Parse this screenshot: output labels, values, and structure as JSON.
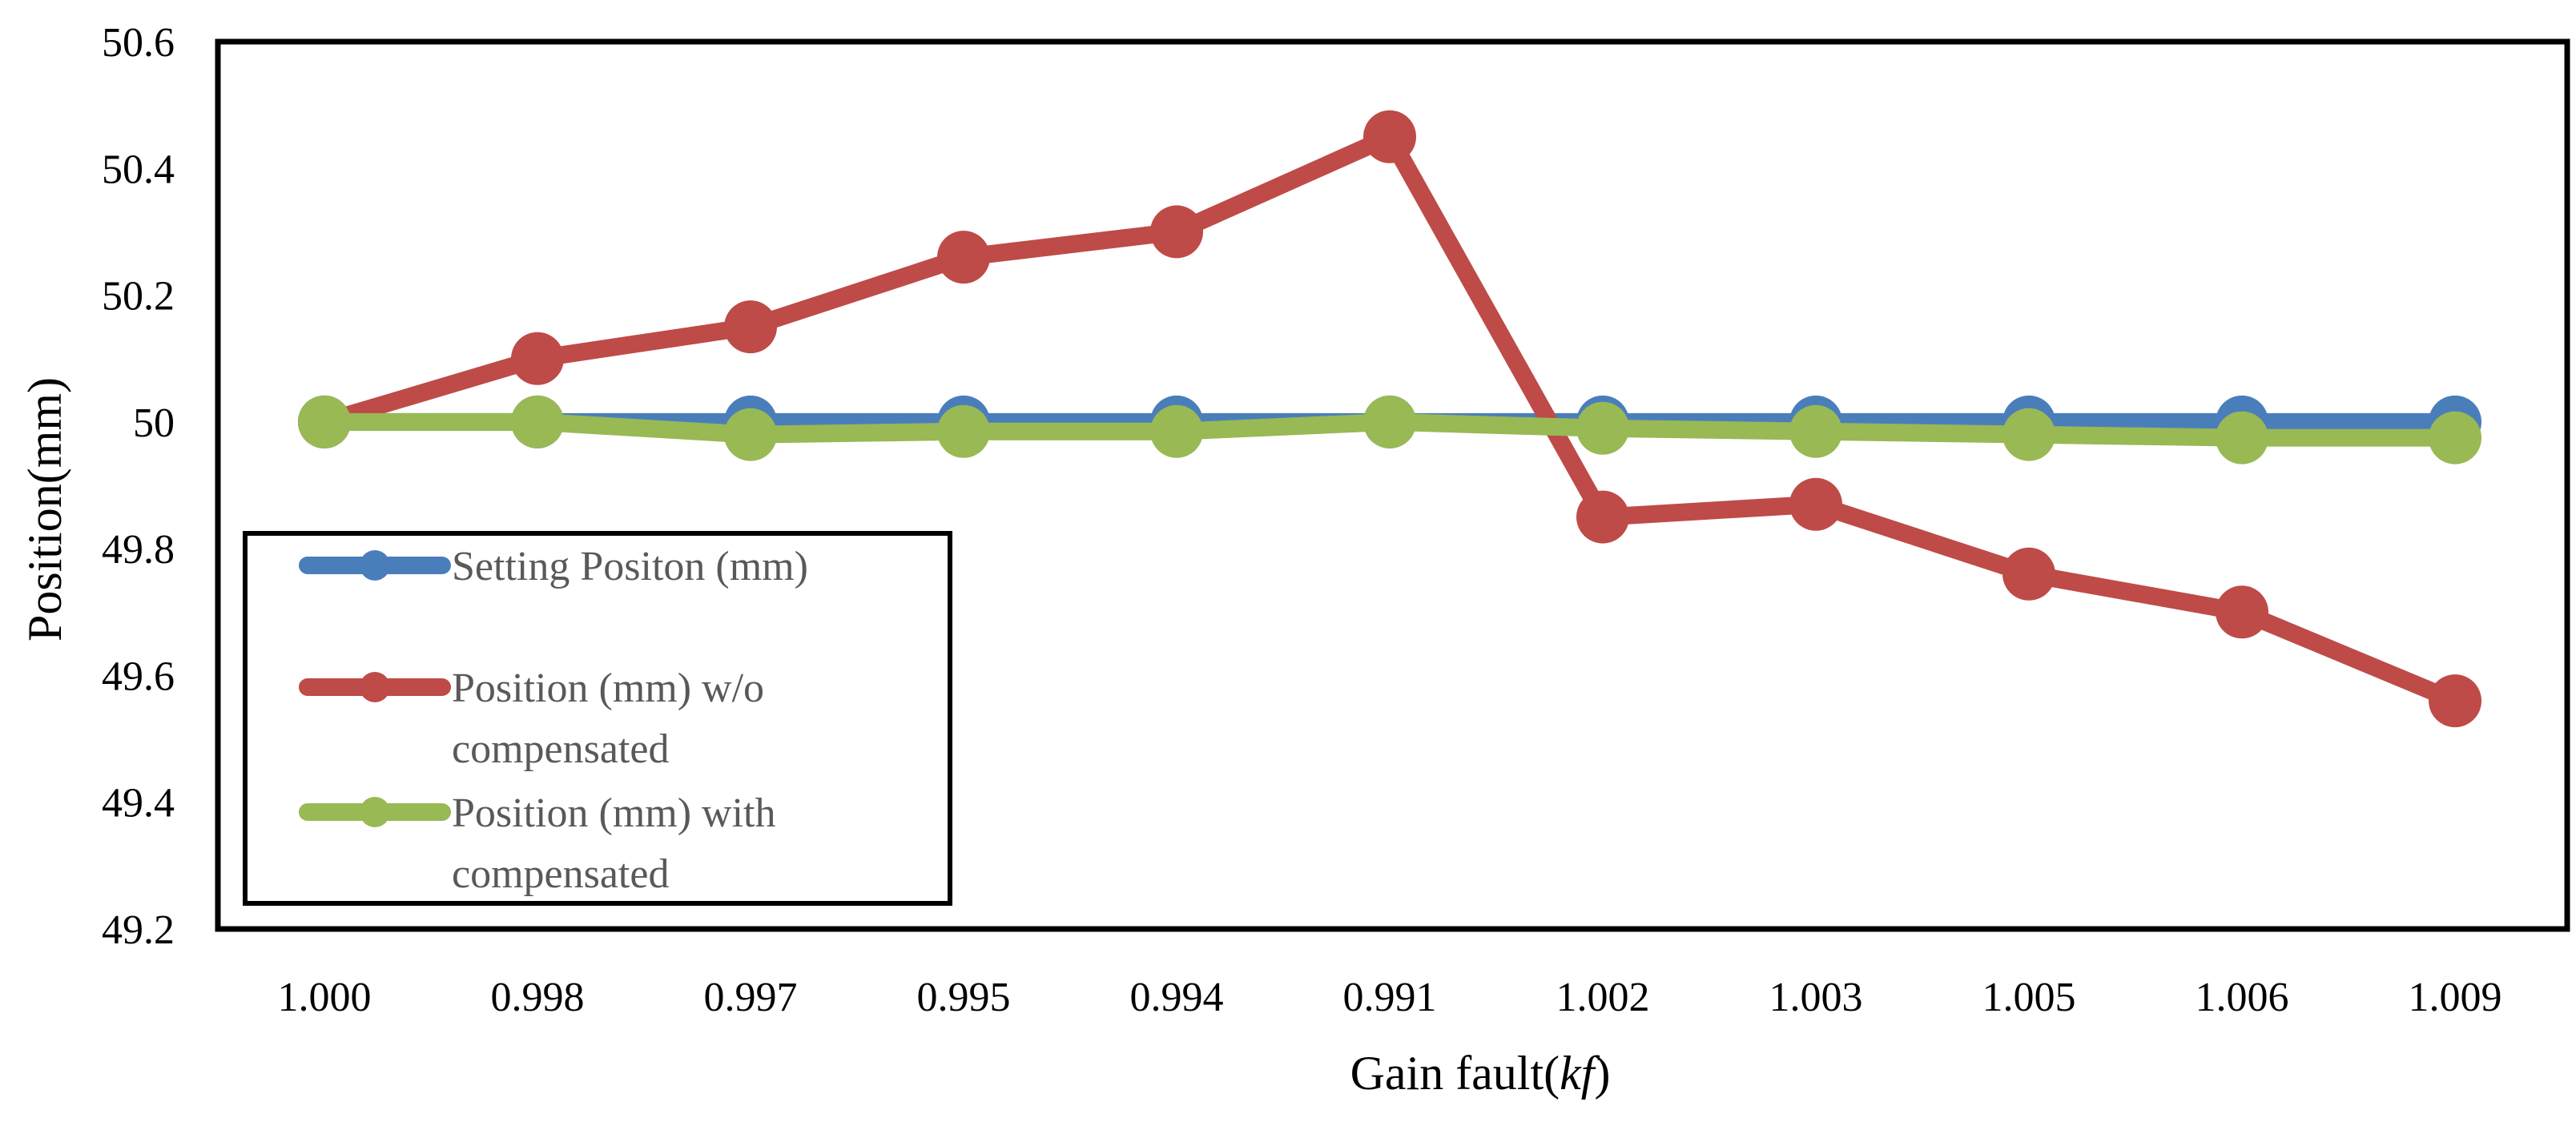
{
  "chart_data": {
    "type": "line",
    "title": "",
    "xlabel": "Gain fault(",
    "xlabel_italic": "kf",
    "xlabel_suffix": ")",
    "ylabel": "Position(mm)",
    "ylim": [
      49.2,
      50.6
    ],
    "yticks": [
      "49.2",
      "49.4",
      "49.6",
      "49.8",
      "50",
      "50.2",
      "50.4",
      "50.6"
    ],
    "ytick_values": [
      49.2,
      49.4,
      49.6,
      49.8,
      50.0,
      50.2,
      50.4,
      50.6
    ],
    "categories": [
      "1.000",
      "0.998",
      "0.997",
      "0.995",
      "0.994",
      "0.991",
      "1.002",
      "1.003",
      "1.005",
      "1.006",
      "1.009"
    ],
    "grid": false,
    "legend_position": "lower-left",
    "series": [
      {
        "name": "Setting Positon (mm)",
        "color": "#4A7EBB",
        "values": [
          50,
          50,
          50,
          50,
          50,
          50,
          50,
          50,
          50,
          50,
          50
        ]
      },
      {
        "name": "Position (mm) w/o compensated",
        "legend_lines": [
          "Position (mm) w/o",
          "compensated"
        ],
        "color": "#BE4B48",
        "values": [
          50.0,
          50.1,
          50.15,
          50.26,
          50.3,
          50.45,
          49.85,
          49.87,
          49.76,
          49.7,
          49.56
        ]
      },
      {
        "name": "Position (mm) with compensated",
        "legend_lines": [
          "Position (mm) with",
          "compensated"
        ],
        "color": "#98B954",
        "values": [
          50.0,
          50.0,
          49.98,
          49.985,
          49.985,
          50.0,
          49.99,
          49.985,
          49.98,
          49.975,
          49.975
        ]
      }
    ]
  }
}
